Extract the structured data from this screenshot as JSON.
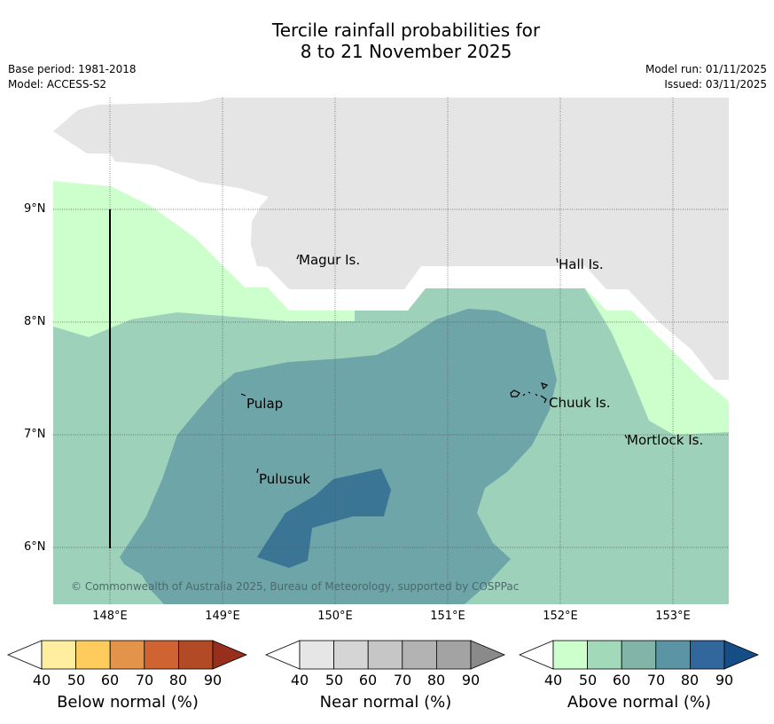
{
  "title": {
    "line1": "Tercile rainfall probabilities for",
    "line2": "8 to 21 November 2025"
  },
  "meta": {
    "base_period": "Base period: 1981-2018",
    "model": "Model: ACCESS-S2",
    "model_run": "Model run: 01/11/2025",
    "issued": "Issued: 03/11/2025"
  },
  "map": {
    "lat_ticks": [
      "9°N",
      "8°N",
      "7°N",
      "6°N"
    ],
    "lon_ticks": [
      "148°E",
      "149°E",
      "150°E",
      "151°E",
      "152°E",
      "153°E"
    ],
    "places": [
      "Magur Is.",
      "Hall Is.",
      "Pulap",
      "Chuuk Is.",
      "Mortlock Is.",
      "Pulusuk"
    ],
    "copyright": "© Commonwealth of Australia 2025, Bureau of Meteorology, supported by COSPPac",
    "colors": {
      "masked": "#e5e5e5",
      "above_40": "#ccffcc",
      "above_50": "#9ed1ba",
      "above_60": "#6ea5a8",
      "above_70": "#3a7595"
    }
  },
  "colorbars": {
    "ticks": [
      "40",
      "50",
      "60",
      "70",
      "80",
      "90"
    ],
    "below": {
      "label": "Below normal (%)",
      "colors": [
        "#ffffff",
        "#ffeda0",
        "#fecc5c",
        "#e3944a",
        "#cf6331",
        "#b34a26",
        "#972f1c"
      ]
    },
    "near": {
      "label": "Near normal (%)",
      "colors": [
        "#ffffff",
        "#e6e6e6",
        "#d5d5d5",
        "#c6c6c6",
        "#b3b3b3",
        "#a3a3a3",
        "#8a8a8a"
      ]
    },
    "above": {
      "label": "Above normal (%)",
      "colors": [
        "#ffffff",
        "#ccffcc",
        "#a2d9b9",
        "#82b5a8",
        "#5b94a4",
        "#31679c",
        "#154d86"
      ]
    }
  }
}
